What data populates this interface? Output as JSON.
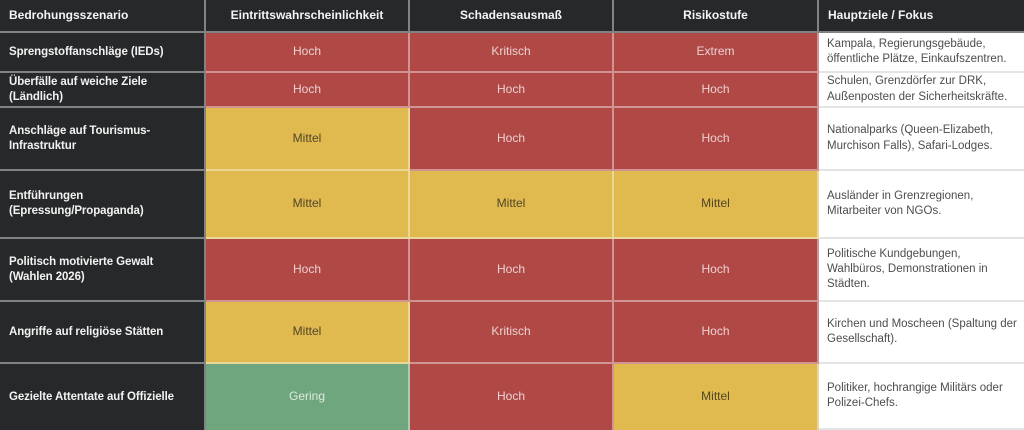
{
  "table": {
    "columns": [
      {
        "key": "scenario",
        "label": "Bedrohungsszenario"
      },
      {
        "key": "probability",
        "label": "Eintrittswahrscheinlichkeit"
      },
      {
        "key": "impact",
        "label": "Schadensausmaß"
      },
      {
        "key": "risk",
        "label": "Risikostufe"
      },
      {
        "key": "targets",
        "label": "Hauptziele / Fokus"
      }
    ],
    "rows": [
      {
        "scenario": "Sprengstoffanschläge (IEDs)",
        "probability": {
          "label": "Hoch",
          "level": "high"
        },
        "impact": {
          "label": "Kritisch",
          "level": "high"
        },
        "risk": {
          "label": "Extrem",
          "level": "high"
        },
        "targets": "Kampala, Regierungsgebäude, öffentliche Plätze, Einkaufszentren."
      },
      {
        "scenario": "Überfälle auf weiche Ziele (Ländlich)",
        "probability": {
          "label": "Hoch",
          "level": "high"
        },
        "impact": {
          "label": "Hoch",
          "level": "high"
        },
        "risk": {
          "label": "Hoch",
          "level": "high"
        },
        "targets": "Schulen, Grenzdörfer zur DRK, Außenposten der Sicherheitskräfte."
      },
      {
        "scenario": "Anschläge auf Tourismus-Infrastruktur",
        "probability": {
          "label": "Mittel",
          "level": "medium"
        },
        "impact": {
          "label": "Hoch",
          "level": "high"
        },
        "risk": {
          "label": "Hoch",
          "level": "high"
        },
        "targets": "Nationalparks (Queen-Elizabeth, Murchison Falls), Safari-Lodges."
      },
      {
        "scenario": "Entführungen (Epressung/Propaganda)",
        "probability": {
          "label": "Mittel",
          "level": "medium"
        },
        "impact": {
          "label": "Mittel",
          "level": "medium"
        },
        "risk": {
          "label": "Mittel",
          "level": "medium"
        },
        "targets": "Ausländer in Grenzregionen, Mitarbeiter von NGOs."
      },
      {
        "scenario": "Politisch motivierte Gewalt (Wahlen 2026)",
        "probability": {
          "label": "Hoch",
          "level": "high"
        },
        "impact": {
          "label": "Hoch",
          "level": "high"
        },
        "risk": {
          "label": "Hoch",
          "level": "high"
        },
        "targets": "Politische Kundgebungen, Wahlbüros, Demonstrationen in Städten."
      },
      {
        "scenario": "Angriffe auf religiöse Stätten",
        "probability": {
          "label": "Mittel",
          "level": "medium"
        },
        "impact": {
          "label": "Kritisch",
          "level": "high"
        },
        "risk": {
          "label": "Hoch",
          "level": "high"
        },
        "targets": "Kirchen und Moscheen (Spaltung der Gesellschaft)."
      },
      {
        "scenario": "Gezielte Attentate auf Offizielle",
        "probability": {
          "label": "Gering",
          "level": "low"
        },
        "impact": {
          "label": "Hoch",
          "level": "high"
        },
        "risk": {
          "label": "Mittel",
          "level": "medium"
        },
        "targets": "Politiker, hochrangige Militärs oder Polizei-Chefs."
      }
    ],
    "colors": {
      "high": "#B04846",
      "medium": "#E1BA4F",
      "low": "#70A67D",
      "header_bg": "#26282A"
    }
  }
}
